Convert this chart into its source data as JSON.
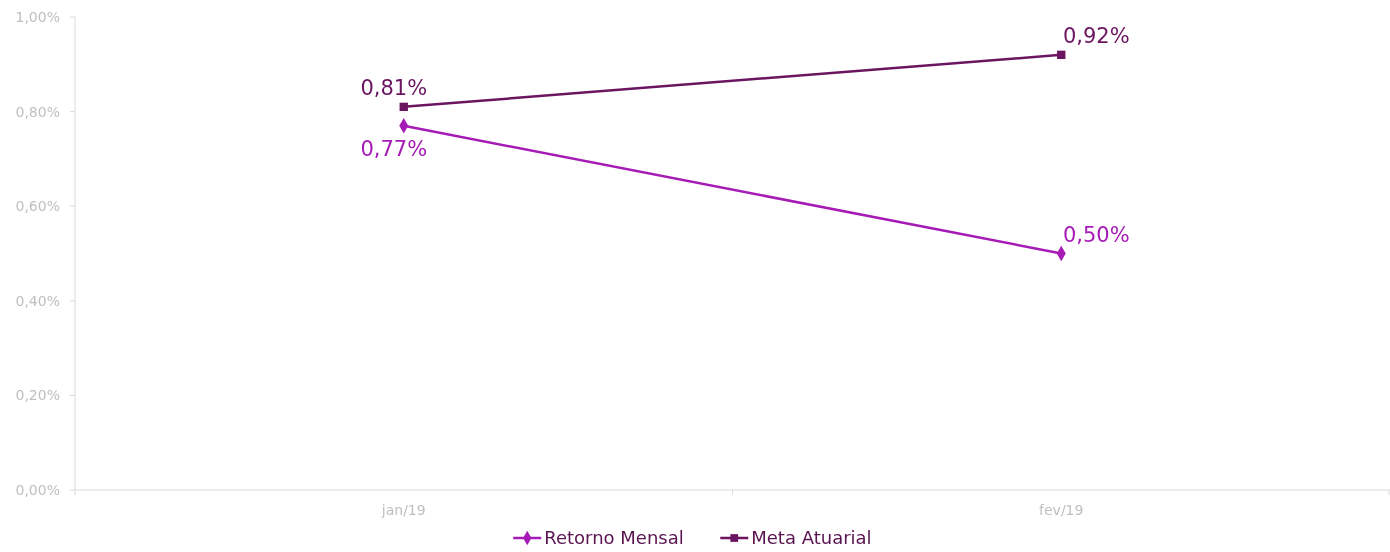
{
  "chart_data": {
    "type": "line",
    "categories": [
      "jan/19",
      "fev/19"
    ],
    "series": [
      {
        "name": "Retorno Mensal",
        "color": "#a61bb5",
        "values": [
          0.77,
          0.5
        ],
        "marker": "diamond",
        "value_labels": [
          "0,77%",
          "0,50%"
        ]
      },
      {
        "name": "Meta Atuarial",
        "color": "#6b1460",
        "values": [
          0.81,
          0.92
        ],
        "marker": "square",
        "value_labels": [
          "0,81%",
          "0,92%"
        ]
      }
    ],
    "ylim": [
      0,
      1
    ],
    "yticks": [
      {
        "value": 0,
        "label": "0,00%"
      },
      {
        "value": 0.2,
        "label": "0,20%"
      },
      {
        "value": 0.4,
        "label": "0,40%"
      },
      {
        "value": 0.6,
        "label": "0,60%"
      },
      {
        "value": 0.8,
        "label": "0,80%"
      },
      {
        "value": 1,
        "label": "1,00%"
      }
    ],
    "grid": false,
    "legend": "bottom"
  }
}
